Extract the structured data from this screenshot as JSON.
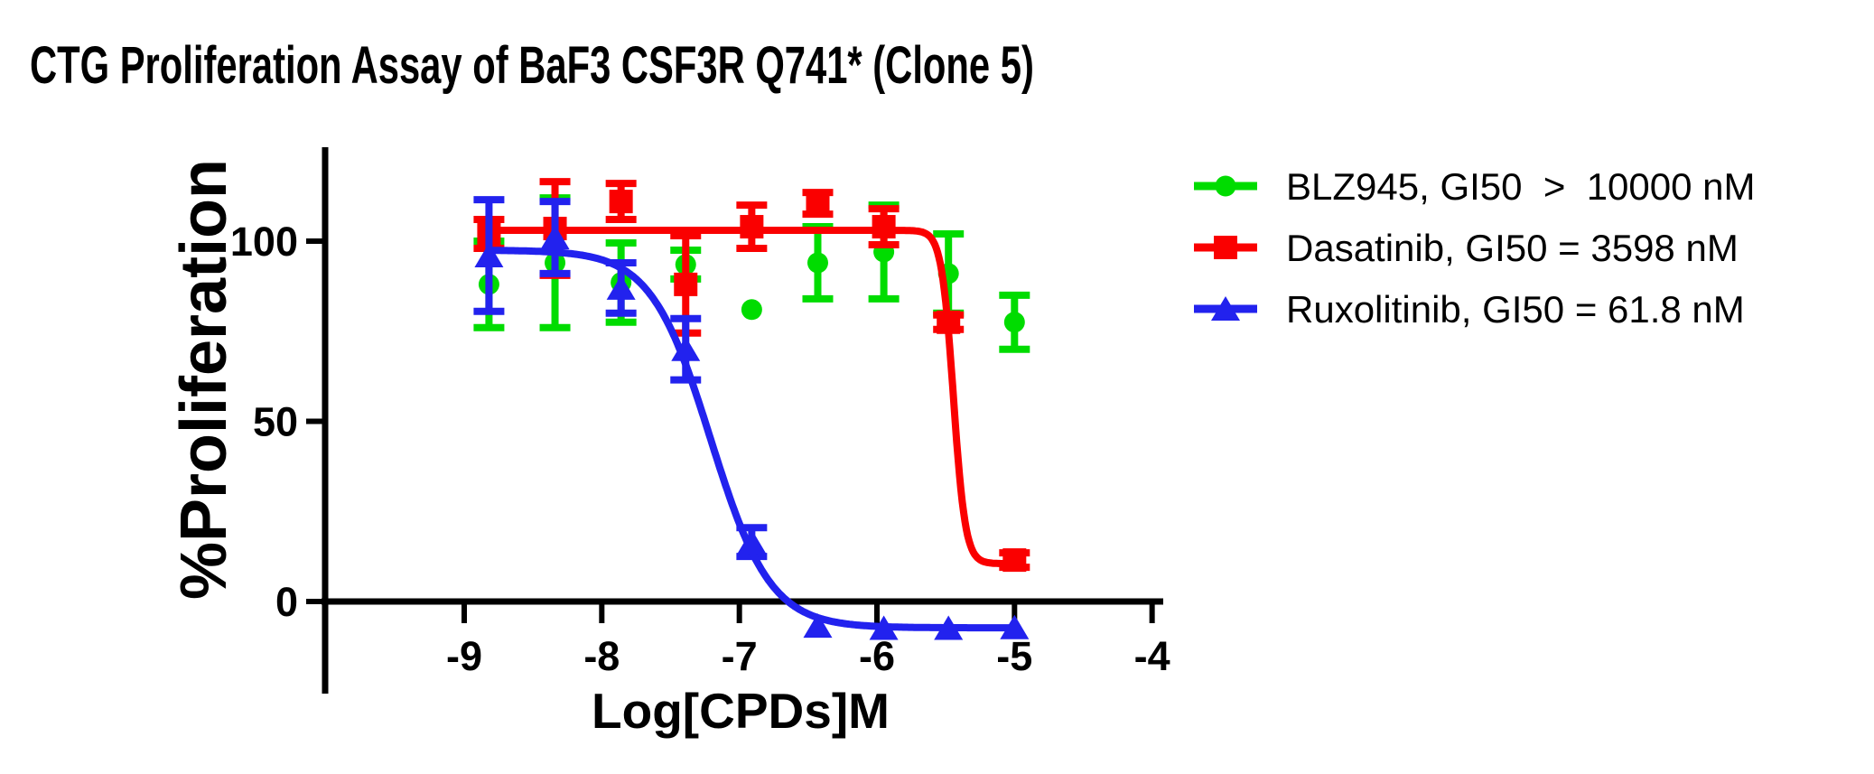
{
  "title": "CTG Proliferation Assay of BaF3 CSF3R Q741* (Clone 5)",
  "chart_data": {
    "type": "scatter",
    "title": "CTG Proliferation Assay of BaF3 CSF3R Q741* (Clone 5)",
    "xlabel": "Log[CPDs]M",
    "ylabel": "%Proliferation",
    "xlim": [
      -10,
      -3.9
    ],
    "ylim": [
      -25,
      126
    ],
    "x_ticks": [
      -9,
      -8,
      -7,
      -6,
      -5,
      -4
    ],
    "y_ticks": [
      0,
      50,
      100
    ],
    "grid": false,
    "legend_position": "right-top",
    "axis_color": "#000000",
    "x": [
      -8.82,
      -8.34,
      -7.86,
      -7.39,
      -6.91,
      -6.43,
      -5.95,
      -5.48,
      -5.0
    ],
    "series": [
      {
        "name": "BLZ945",
        "legend": "BLZ945, GI50  >  10000 nM",
        "gi50": "> 10000 nM",
        "color": "#00DC00",
        "marker": "circle",
        "values": [
          88,
          94,
          88.5,
          93.5,
          81,
          94,
          97,
          91,
          77.5
        ],
        "errors": [
          12,
          18,
          11,
          4,
          0,
          10,
          13,
          11,
          7.5
        ],
        "fit": null
      },
      {
        "name": "Dasatinib",
        "legend": "Dasatinib, GI50 = 3598 nM",
        "gi50": "= 3598 nM",
        "color": "#FA0000",
        "marker": "square",
        "values": [
          102,
          103.5,
          111,
          88,
          104,
          110.5,
          104,
          77.5,
          11.5
        ],
        "errors": [
          4,
          13,
          5,
          13.5,
          6,
          3,
          5,
          2,
          2
        ],
        "fit": {
          "top": 103,
          "bottom": 10.5,
          "logIC50": -5.444,
          "hill": 10
        }
      },
      {
        "name": "Ruxolitinib",
        "legend": "Ruxolitinib, GI50 = 61.8 nM",
        "gi50": "= 61.8 nM",
        "color": "#2222EE",
        "marker": "triangle",
        "values": [
          96,
          101,
          87,
          70,
          16.5,
          -6.8,
          -7.4,
          -7.4,
          -7.2
        ],
        "errors": [
          15.5,
          10,
          7,
          8.5,
          4,
          0,
          0,
          0,
          0
        ],
        "fit": {
          "top": 97.5,
          "bottom": -7.3,
          "logIC50": -7.209,
          "hill": 2.0
        }
      }
    ]
  }
}
